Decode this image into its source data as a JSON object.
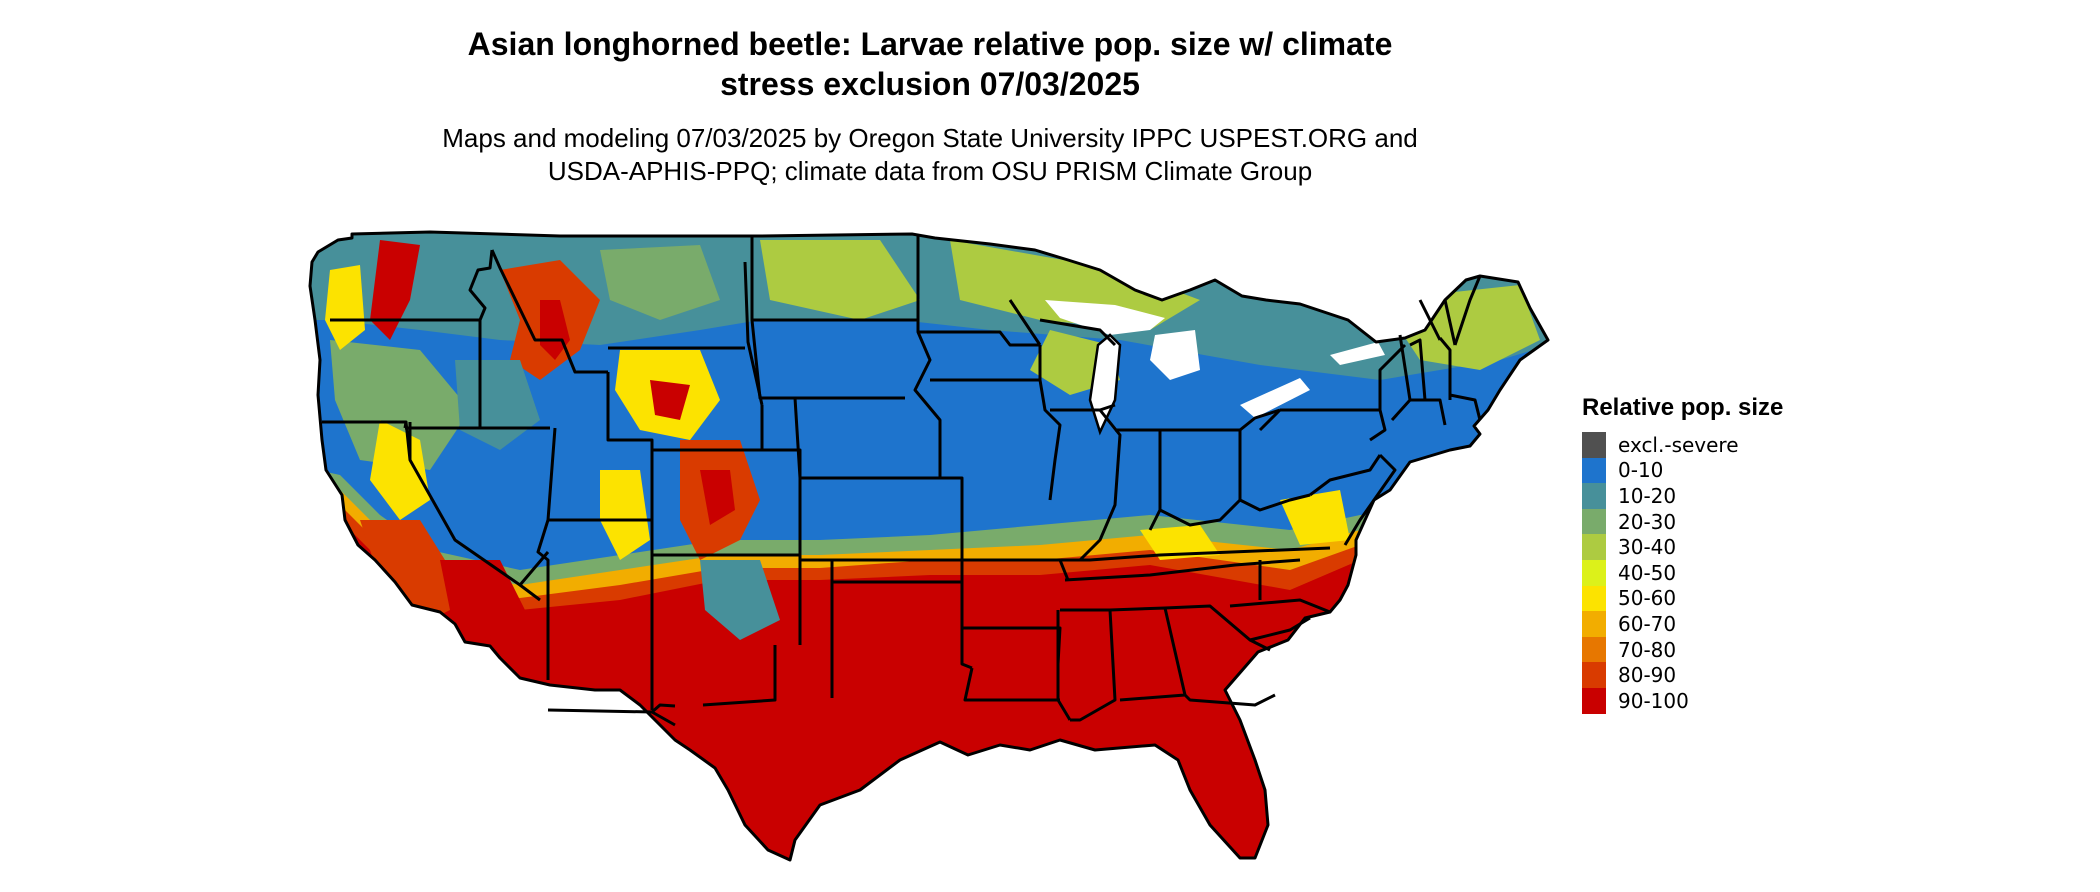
{
  "title_line1": "Asian longhorned beetle: Larvae relative pop. size w/ climate",
  "title_line2": "stress exclusion 07/03/2025",
  "subtitle_line1": "Maps and modeling 07/03/2025 by Oregon State University IPPC USPEST.ORG and",
  "subtitle_line2": "USDA-APHIS-PPQ; climate data from OSU PRISM Climate Group",
  "legend": {
    "title": "Relative pop. size",
    "items": [
      {
        "label": "excl.-severe",
        "color": "#505050"
      },
      {
        "label": "0-10",
        "color": "#1e74cd"
      },
      {
        "label": "10-20",
        "color": "#47909a"
      },
      {
        "label": "20-30",
        "color": "#79ab6b"
      },
      {
        "label": "30-40",
        "color": "#adcb41"
      },
      {
        "label": "40-50",
        "color": "#dcf11a"
      },
      {
        "label": "50-60",
        "color": "#fce300"
      },
      {
        "label": "60-70",
        "color": "#f2ad00"
      },
      {
        "label": "70-80",
        "color": "#e77700"
      },
      {
        "label": "80-90",
        "color": "#d93b00"
      },
      {
        "label": "90-100",
        "color": "#c90000"
      }
    ]
  }
}
